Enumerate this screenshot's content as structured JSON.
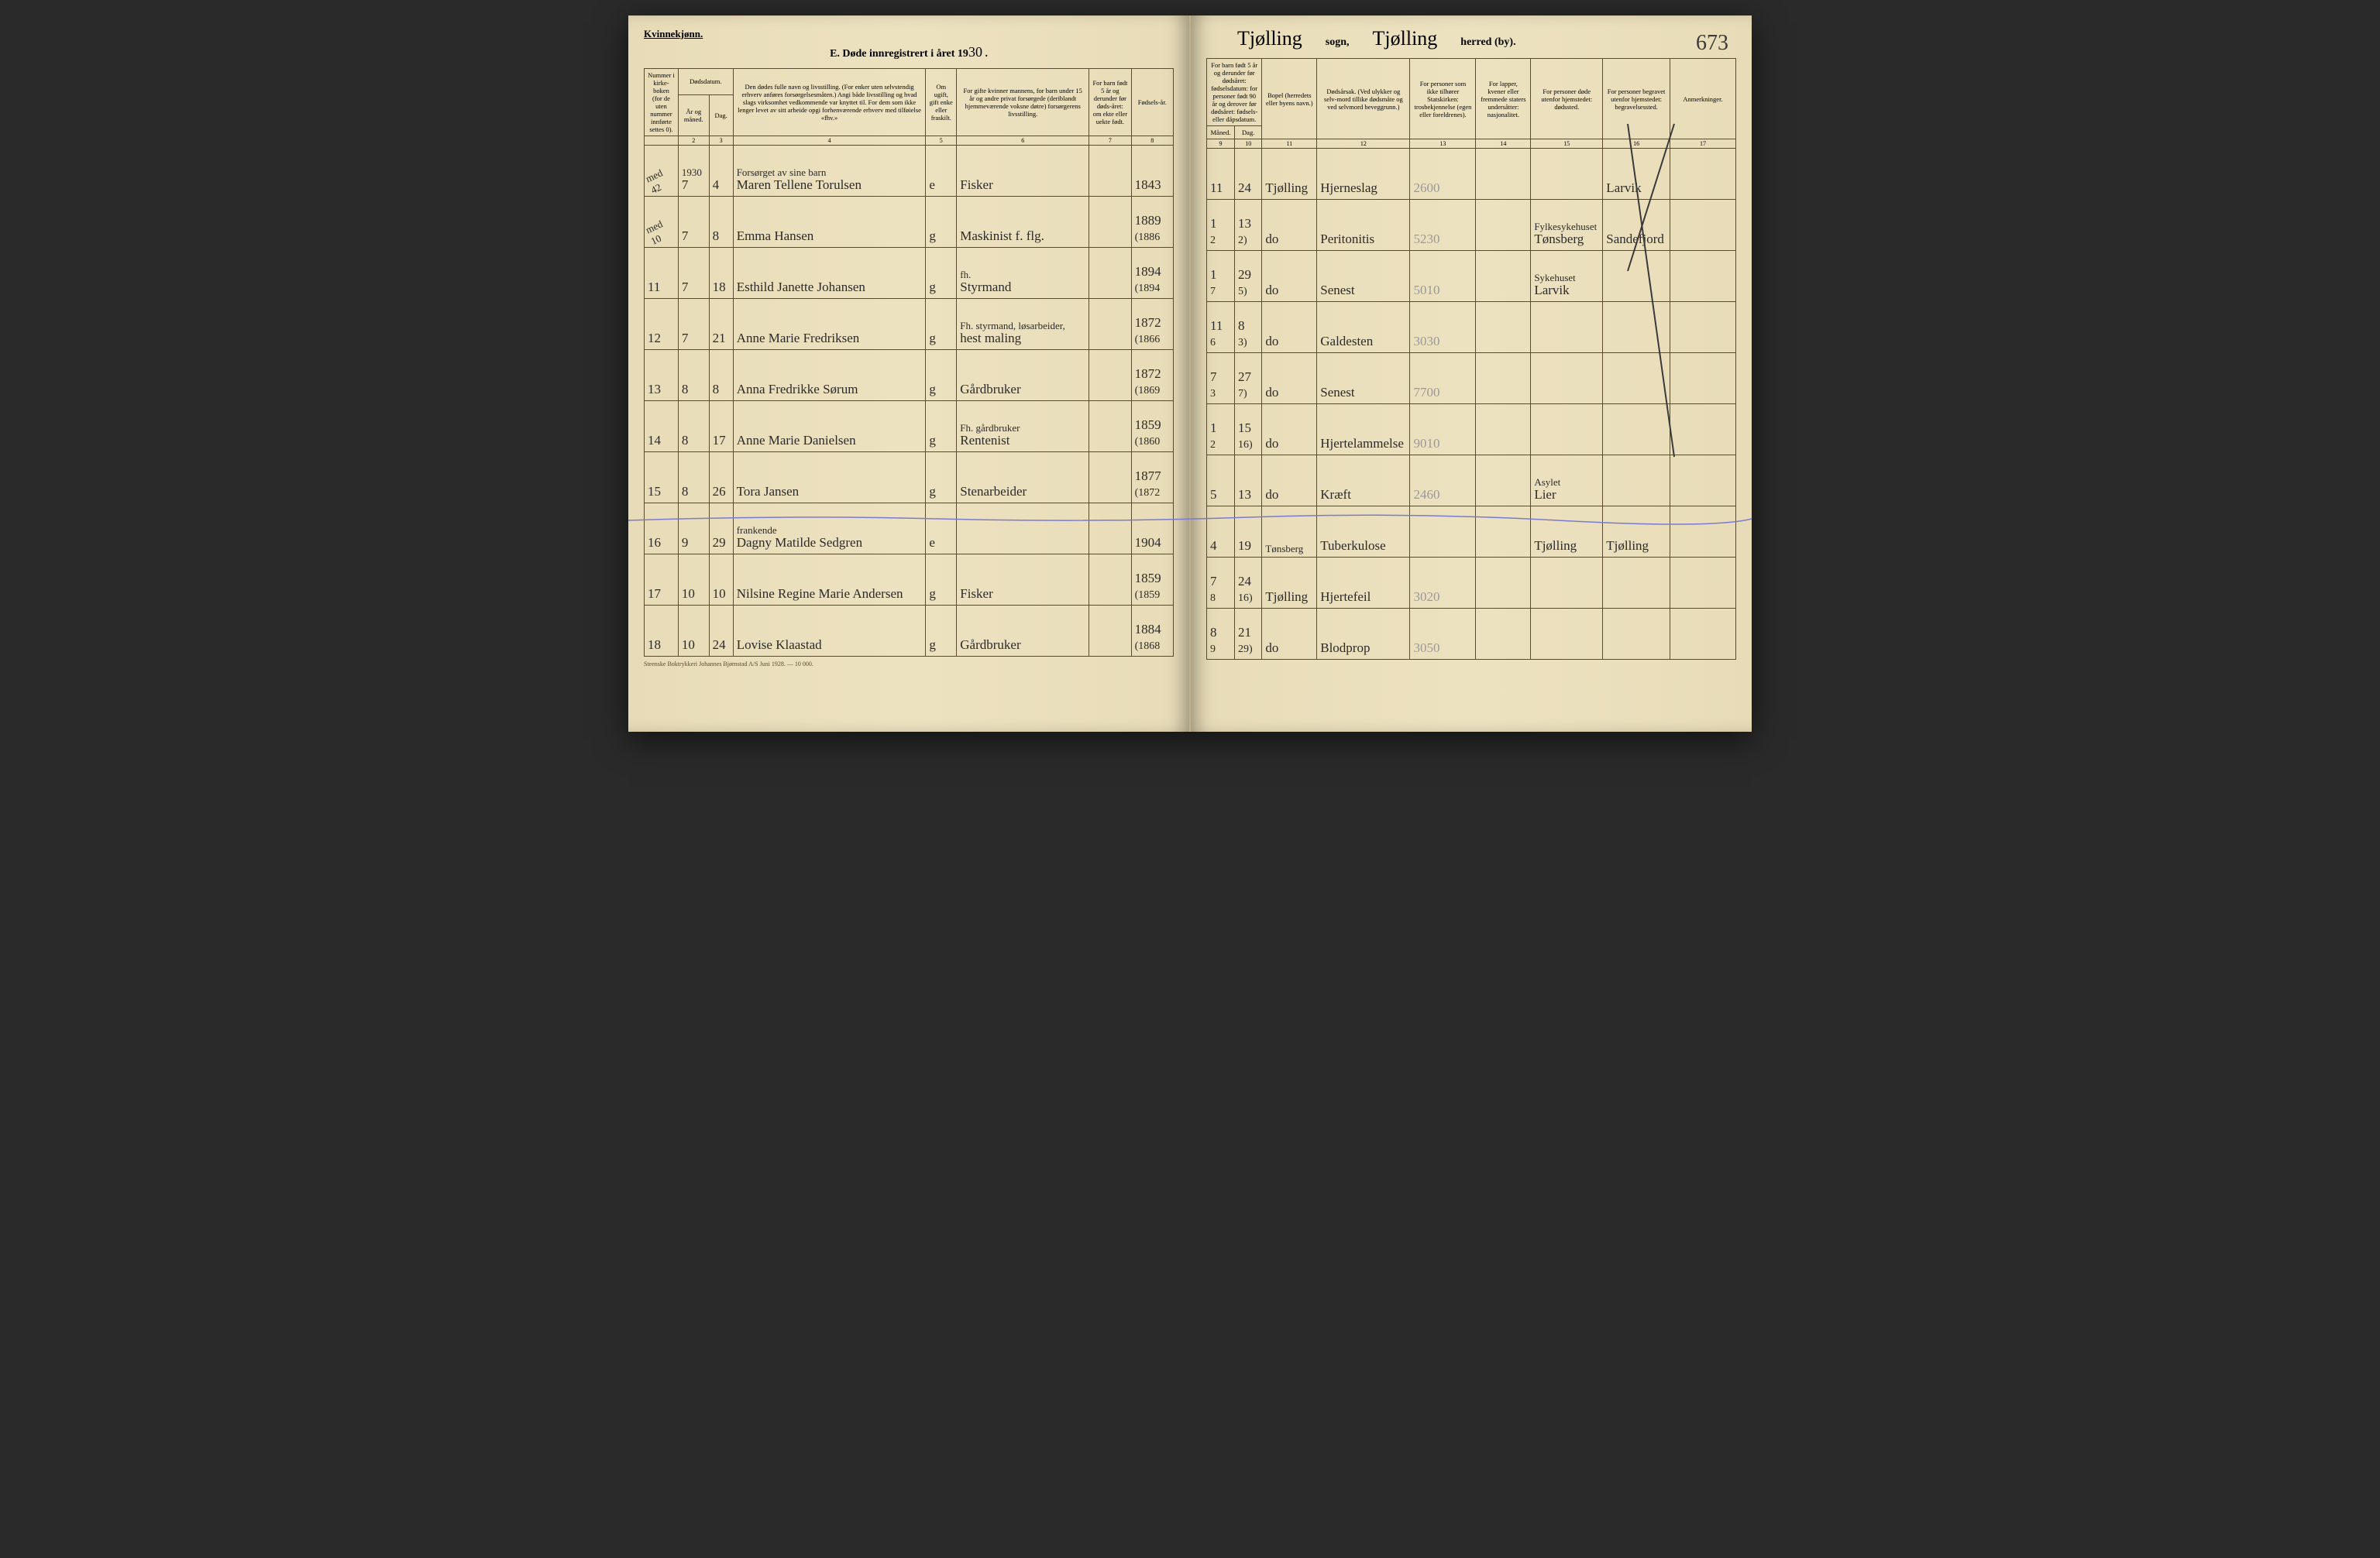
{
  "header": {
    "gender": "Kvinnekjønn.",
    "title_prefix": "E.  Døde innregistrert i året 19",
    "title_year": "30",
    "sogn_value": "Tjølling",
    "sogn_label": "sogn,",
    "herred_value": "Tjølling",
    "herred_label": "herred (by).",
    "page_number": "673"
  },
  "columns_left": {
    "c1": "Nummer i kirke-boken (for de uten nummer innførte settes 0).",
    "c2a": "Dødsdatum.",
    "c2b": "År og måned.",
    "c2c": "Dag.",
    "c4": "Den dødes fulle navn og livsstilling. (For enker uten selvstendig erhverv anføres forsørgelsesmåten.) Angi både livsstilling og hvad slags virksomhet vedkommende var knyttet til. For dem som ikke lenger levet av sitt arbeide opgi forhenværende erhverv med tilføielse «fhv.»",
    "c5": "Om ugift, gift enke eller fraskilt.",
    "c6": "For gifte kvinner mannens, for barn under 15 år og andre privat forsørgede (deriblandt hjemmeværende voksne døtre) forsørgerens livsstilling.",
    "c7": "For barn født 5 år og derunder før døds-året: om ekte eller uekte født.",
    "c8": "Fødsels-år."
  },
  "columns_right": {
    "c9": "For barn født 5 år og derunder før dødsåret: fødselsdatum: for personer født 90 år og derover før dødsåret: fødsels- eller dåpsdatum.",
    "c9a": "Måned.",
    "c9b": "Dag.",
    "c11": "Bopel (herredets eller byens navn.)",
    "c12": "Dødsårsak. (Ved ulykker og selv-mord tillike dødsmåte og ved selvmord beveggrunn.)",
    "c13": "For personer som ikke tilhører Statskirken: trosbekjennelse (egen eller foreldrenes).",
    "c14": "For lapper, kvener eller fremmede staters undersåtter: nasjonalitet.",
    "c15": "For personer døde utenfor hjemstedet: dødssted.",
    "c16": "For personer begravet utenfor hjemstedet: begravelsessted.",
    "c17": "Anmerkninger."
  },
  "col_numbers_left": [
    "",
    "2",
    "3",
    "4",
    "5",
    "6",
    "7",
    "8"
  ],
  "col_numbers_right": [
    "9",
    "10",
    "11",
    "12",
    "13",
    "14",
    "15",
    "16",
    "17"
  ],
  "rows": [
    {
      "num": "",
      "num_note": "med 42",
      "year_mo": "1930",
      "ym": "7",
      "day": "4",
      "name_top": "Forsørget av sine barn",
      "name": "Maren Tellene Torulsen",
      "status": "e",
      "provider": "Fisker",
      "birth_year": "1843",
      "b_mo": "11",
      "b_day": "24",
      "bopel": "Tjølling",
      "cause": "Hjerneslag",
      "code": "2600",
      "col15": "",
      "col16": "Larvik"
    },
    {
      "num": "",
      "num_note": "med 10",
      "ym": "7",
      "day": "8",
      "name": "Emma Hansen",
      "status": "g",
      "provider": "Maskinist f. flg.",
      "birth_year": "1889",
      "birth_year2": "(1886",
      "b_mo": "1",
      "b_day": "13",
      "b_mo2": "2",
      "b_day2": "2)",
      "bopel": "do",
      "cause": "Peritonitis",
      "code": "5230",
      "col15_top": "Fylkesykehuset",
      "col15": "Tønsberg",
      "col16": "Sandefjord"
    },
    {
      "num": "11",
      "ym": "7",
      "day": "18",
      "name": "Esthild Janette Johansen",
      "status": "g",
      "provider_top": "fh.",
      "provider": "Styrmand",
      "birth_year": "1894",
      "birth_year2": "(1894",
      "b_mo": "1",
      "b_day": "29",
      "b_mo2": "7",
      "b_day2": "5)",
      "bopel": "do",
      "cause": "Senest",
      "code": "5010",
      "col15_top": "Sykehuset",
      "col15": "Larvik"
    },
    {
      "num": "12",
      "ym": "7",
      "day": "21",
      "name": "Anne Marie Fredriksen",
      "status": "g",
      "provider_top": "Fh. styrmand, løsarbeider,",
      "provider": "hest maling",
      "birth_year": "1872",
      "birth_year2": "(1866",
      "b_mo": "11",
      "b_day": "8",
      "b_mo2": "6",
      "b_day2": "3)",
      "bopel": "do",
      "cause": "Galdesten",
      "code": "3030"
    },
    {
      "num": "13",
      "ym": "8",
      "day": "8",
      "name": "Anna Fredrikke Sørum",
      "status": "g",
      "provider": "Gårdbruker",
      "birth_year": "1872",
      "birth_year2": "(1869",
      "b_mo": "7",
      "b_day": "27",
      "b_mo2": "3",
      "b_day2": "7)",
      "bopel": "do",
      "cause": "Senest",
      "code": "7700"
    },
    {
      "num": "14",
      "ym": "8",
      "day": "17",
      "name": "Anne Marie Danielsen",
      "status": "g",
      "provider_top": "Fh. gårdbruker",
      "provider": "Rentenist",
      "birth_year": "1859",
      "birth_year2": "(1860",
      "b_mo": "1",
      "b_day": "15",
      "b_mo2": "2",
      "b_day2": "16)",
      "bopel": "do",
      "cause": "Hjertelammelse",
      "code": "9010"
    },
    {
      "num": "15",
      "ym": "8",
      "day": "26",
      "name": "Tora Jansen",
      "status": "g",
      "provider": "Stenarbeider",
      "birth_year": "1877",
      "birth_year2": "(1872",
      "b_mo": "5",
      "b_day": "13",
      "bopel": "do",
      "cause": "Kræft",
      "code": "2460",
      "col15_top": "Asylet",
      "col15": "Lier"
    },
    {
      "num": "16",
      "ym": "9",
      "day": "29",
      "name_top": "frankende",
      "name": "Dagny Matilde Sedgren",
      "status": "e",
      "birth_year": "1904",
      "b_mo": "4",
      "b_day": "19",
      "bopel_top": "Tønsberg",
      "cause": "Tuberkulose",
      "col15": "Tjølling",
      "col16": "Tjølling"
    },
    {
      "num": "17",
      "ym": "10",
      "day": "10",
      "name": "Nilsine Regine Marie Andersen",
      "status": "g",
      "provider": "Fisker",
      "birth_year": "1859",
      "birth_year2": "(1859",
      "b_mo": "7",
      "b_day": "24",
      "b_mo2": "8",
      "b_day2": "16)",
      "bopel": "Tjølling",
      "cause": "Hjertefeil",
      "code": "3020"
    },
    {
      "num": "18",
      "ym": "10",
      "day": "24",
      "name": "Lovise Klaastad",
      "status": "g",
      "provider": "Gårdbruker",
      "birth_year": "1884",
      "birth_year2": "(1868",
      "b_mo": "8",
      "b_day": "21",
      "b_mo2": "9",
      "b_day2": "29)",
      "bopel": "do",
      "cause": "Blodprop",
      "code": "3050"
    }
  ],
  "footer": "Steenske Boktrykkeri Johannes Bjørnstad A/S  Juni 1928. — 10 000."
}
